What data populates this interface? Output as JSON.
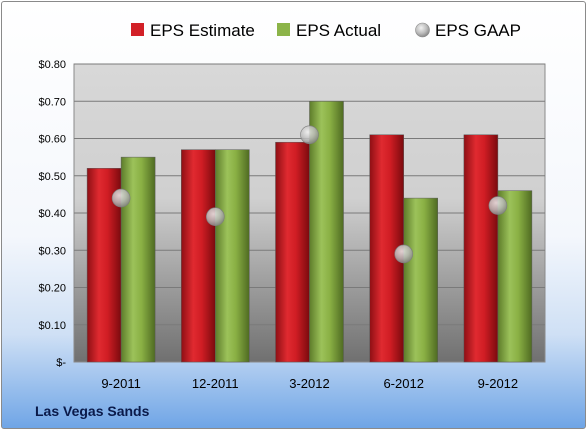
{
  "company": "Las Vegas Sands",
  "chart_data": {
    "type": "bar",
    "categories": [
      "9-2011",
      "12-2011",
      "3-2012",
      "6-2012",
      "9-2012"
    ],
    "series": [
      {
        "name": "EPS Estimate",
        "kind": "bar",
        "color": "#d22027",
        "values": [
          0.52,
          0.57,
          0.59,
          0.61,
          0.61
        ]
      },
      {
        "name": "EPS Actual",
        "kind": "bar",
        "color": "#8cb449",
        "values": [
          0.55,
          0.57,
          0.7,
          0.44,
          0.46
        ]
      },
      {
        "name": "EPS GAAP",
        "kind": "marker",
        "color": "#b4b4b4",
        "values": [
          0.44,
          0.39,
          0.61,
          0.29,
          0.42
        ]
      }
    ],
    "ylim": [
      0,
      0.8
    ],
    "ytick_values": [
      0,
      0.1,
      0.2,
      0.3,
      0.4,
      0.5,
      0.6,
      0.7,
      0.8
    ],
    "ytick_labels": [
      "$-",
      "$0.10",
      "$0.20",
      "$0.30",
      "$0.40",
      "$0.50",
      "$0.60",
      "$0.70",
      "$0.80"
    ],
    "grid": true,
    "legend_position": "top"
  }
}
